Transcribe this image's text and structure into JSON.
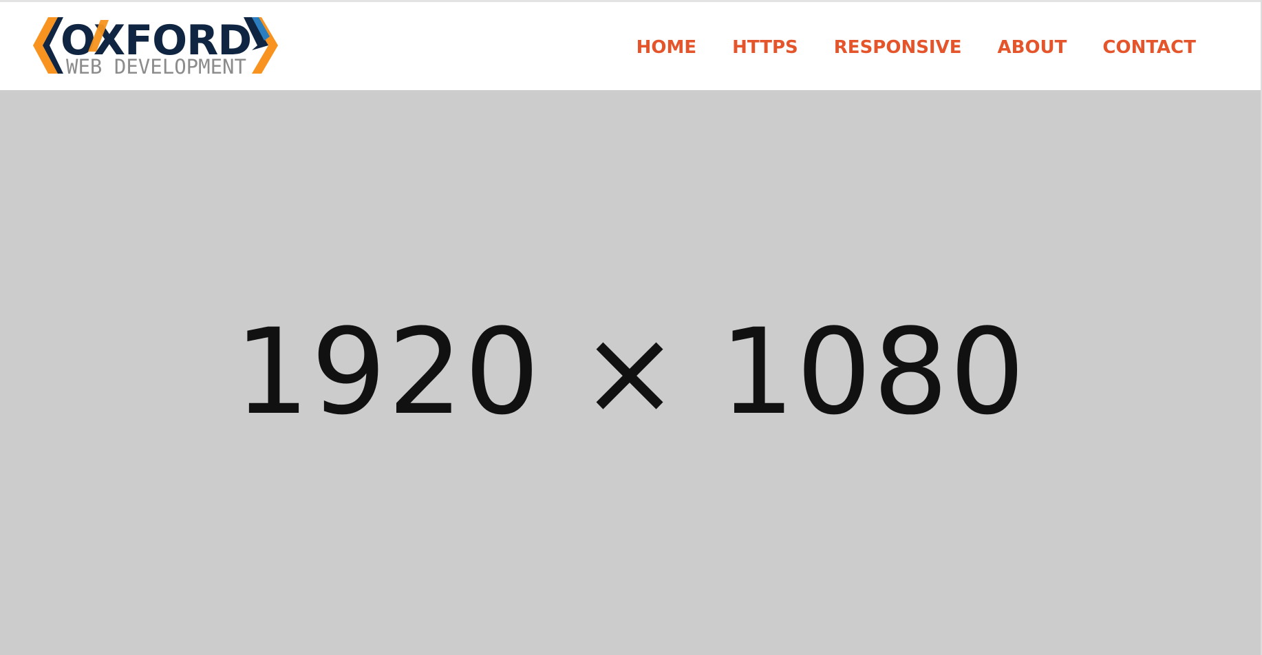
{
  "logo": {
    "title": "OXFORD",
    "subtitle": "WEB DEVELOPMENT",
    "colors": {
      "navy": "#0f2542",
      "orange": "#f7931e",
      "blue": "#2b7fc0",
      "gray": "#8c8c8c"
    }
  },
  "nav": {
    "items": [
      {
        "label": "HOME"
      },
      {
        "label": "HTTPS"
      },
      {
        "label": "RESPONSIVE"
      },
      {
        "label": "ABOUT"
      },
      {
        "label": "CONTACT"
      }
    ],
    "color": "#e4552c"
  },
  "hero": {
    "placeholder_text": "1920 × 1080",
    "background": "#cccccc"
  }
}
